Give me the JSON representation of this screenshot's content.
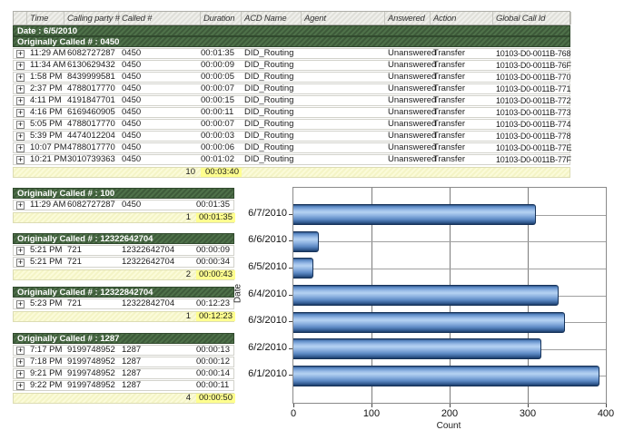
{
  "icons": {
    "expand": "+"
  },
  "colors": {
    "group_band_green": "#46623F",
    "header_gray": "#E8E8E4",
    "summary_yellow": "#FAFAD2",
    "summary_highlight": "#FFFF8F",
    "bar_blue_light": "#B5D2F2",
    "bar_blue_dark": "#1C3A63"
  },
  "report": {
    "date_header": "Date : 6/5/2010",
    "columns": [
      {
        "key": "expand",
        "label": ""
      },
      {
        "key": "time",
        "label": "Time"
      },
      {
        "key": "calling",
        "label": "Calling party #"
      },
      {
        "key": "called",
        "label": "Called #"
      },
      {
        "key": "duration",
        "label": "Duration"
      },
      {
        "key": "acd",
        "label": "ACD Name"
      },
      {
        "key": "agent",
        "label": "Agent"
      },
      {
        "key": "answered",
        "label": "Answered"
      },
      {
        "key": "action",
        "label": "Action"
      },
      {
        "key": "global",
        "label": "Global Call Id"
      }
    ],
    "main_group": {
      "title": "Originally Called # : 0450",
      "rows": [
        {
          "time": "11:29 AM",
          "calling": "6082727287",
          "called": "0450",
          "duration": "00:01:35",
          "acd": "DID_Routing",
          "agent": "",
          "answered": "Unanswered",
          "action": "Transfer",
          "global": "10103-D0-0011B-768"
        },
        {
          "time": "11:34 AM",
          "calling": "6130629432",
          "called": "0450",
          "duration": "00:00:09",
          "acd": "DID_Routing",
          "agent": "",
          "answered": "Unanswered",
          "action": "Transfer",
          "global": "10103-D0-0011B-76F"
        },
        {
          "time": "1:58 PM",
          "calling": "8439999581",
          "called": "0450",
          "duration": "00:00:05",
          "acd": "DID_Routing",
          "agent": "",
          "answered": "Unanswered",
          "action": "Transfer",
          "global": "10103-D0-0011B-770"
        },
        {
          "time": "2:37 PM",
          "calling": "4788017770",
          "called": "0450",
          "duration": "00:00:07",
          "acd": "DID_Routing",
          "agent": "",
          "answered": "Unanswered",
          "action": "Transfer",
          "global": "10103-D0-0011B-771"
        },
        {
          "time": "4:11 PM",
          "calling": "4191847701",
          "called": "0450",
          "duration": "00:00:15",
          "acd": "DID_Routing",
          "agent": "",
          "answered": "Unanswered",
          "action": "Transfer",
          "global": "10103-D0-0011B-772"
        },
        {
          "time": "4:16 PM",
          "calling": "6169460905",
          "called": "0450",
          "duration": "00:00:11",
          "acd": "DID_Routing",
          "agent": "",
          "answered": "Unanswered",
          "action": "Transfer",
          "global": "10103-D0-0011B-773"
        },
        {
          "time": "5:05 PM",
          "calling": "4788017770",
          "called": "0450",
          "duration": "00:00:07",
          "acd": "DID_Routing",
          "agent": "",
          "answered": "Unanswered",
          "action": "Transfer",
          "global": "10103-D0-0011B-774"
        },
        {
          "time": "5:39 PM",
          "calling": "4474012204",
          "called": "0450",
          "duration": "00:00:03",
          "acd": "DID_Routing",
          "agent": "",
          "answered": "Unanswered",
          "action": "Transfer",
          "global": "10103-D0-0011B-778"
        },
        {
          "time": "10:07 PM",
          "calling": "4788017770",
          "called": "0450",
          "duration": "00:00:06",
          "acd": "DID_Routing",
          "agent": "",
          "answered": "Unanswered",
          "action": "Transfer",
          "global": "10103-D0-0011B-77E"
        },
        {
          "time": "10:21 PM",
          "calling": "3010739363",
          "called": "0450",
          "duration": "00:01:02",
          "acd": "DID_Routing",
          "agent": "",
          "answered": "Unanswered",
          "action": "Transfer",
          "global": "10103-D0-0011B-77F"
        }
      ],
      "summary": {
        "count": "10",
        "total_duration": "00:03:40"
      }
    },
    "sub_groups": [
      {
        "title": "Originally Called # : 100",
        "rows": [
          {
            "time": "11:29 AM",
            "calling": "6082727287",
            "called": "0450",
            "duration": "00:01:35"
          }
        ],
        "summary": {
          "count": "1",
          "total_duration": "00:01:35"
        }
      },
      {
        "title": "Originally Called # : 12322642704",
        "rows": [
          {
            "time": "5:21 PM",
            "calling": "721",
            "called": "12322642704",
            "duration": "00:00:09"
          },
          {
            "time": "5:21 PM",
            "calling": "721",
            "called": "12322642704",
            "duration": "00:00:34"
          }
        ],
        "summary": {
          "count": "2",
          "total_duration": "00:00:43"
        }
      },
      {
        "title": "Originally Called # : 12322842704",
        "rows": [
          {
            "time": "5:23 PM",
            "calling": "721",
            "called": "12322842704",
            "duration": "00:12:23"
          }
        ],
        "summary": {
          "count": "1",
          "total_duration": "00:12:23"
        }
      },
      {
        "title": "Originally Called # : 1287",
        "rows": [
          {
            "time": "7:17 PM",
            "calling": "9199748952",
            "called": "1287",
            "duration": "00:00:13"
          },
          {
            "time": "7:18 PM",
            "calling": "9199748952",
            "called": "1287",
            "duration": "00:00:12"
          },
          {
            "time": "9:21 PM",
            "calling": "9199748952",
            "called": "1287",
            "duration": "00:00:14"
          },
          {
            "time": "9:22 PM",
            "calling": "9199748952",
            "called": "1287",
            "duration": "00:00:11"
          }
        ],
        "summary": {
          "count": "4",
          "total_duration": "00:00:50"
        }
      }
    ]
  },
  "chart_data": {
    "type": "bar",
    "orientation": "horizontal",
    "title": "",
    "categories": [
      "6/7/2010",
      "6/6/2010",
      "6/5/2010",
      "6/4/2010",
      "6/3/2010",
      "6/2/2010",
      "6/1/2010"
    ],
    "values": [
      310,
      32,
      26,
      340,
      348,
      317,
      392
    ],
    "xlabel": "Count",
    "ylabel": "Date",
    "xlim": [
      0,
      400
    ],
    "x_ticks": [
      0,
      100,
      200,
      300,
      400
    ],
    "grid": true,
    "legend": "none"
  }
}
